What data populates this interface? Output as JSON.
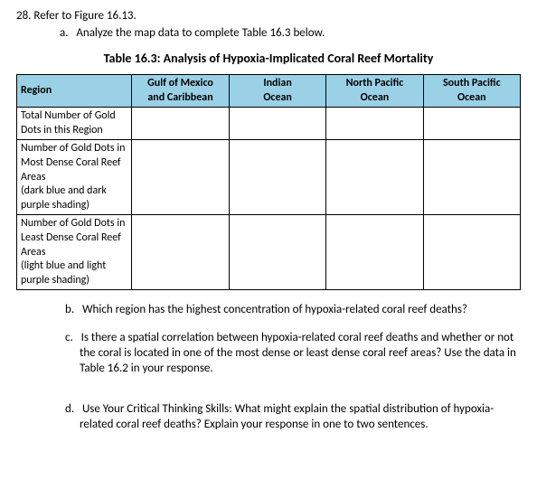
{
  "question_number": "28.",
  "question_ref": "Refer to Figure 16.13.",
  "part_a_label": "a.",
  "part_a_text": "Analyze the map data to complete Table 16.3 below.",
  "table_title": "Table 16.3: Analysis of Hypoxia-Implicated Coral Reef Mortality",
  "headers": {
    "region": "Region",
    "col1_line1": "Gulf of Mexico",
    "col1_line2": "and Caribbean",
    "col2_line1": "Indian",
    "col2_line2": "Ocean",
    "col3_line1": "North Pacific",
    "col3_line2": "Ocean",
    "col4_line1": "South Pacific",
    "col4_line2": "Ocean"
  },
  "rows": {
    "r1": "Total Number of Gold Dots in this Region",
    "r2": "Number of Gold Dots in Most Dense Coral Reef Areas",
    "r2_note": "(dark blue and dark purple shading)",
    "r3": "Number of Gold Dots in Least Dense Coral Reef Areas",
    "r3_note": "(light blue and light purple shading)"
  },
  "part_b_label": "b.",
  "part_b_text": "Which region has the highest concentration of hypoxia-related coral reef deaths?",
  "part_c_label": "c.",
  "part_c_text": "Is there a spatial correlation between hypoxia-related coral reef deaths and whether or not the coral is located in one of the most dense or least dense coral reef areas? Use the data in Table 16.2 in your response.",
  "part_d_label": "d.",
  "part_d_text": "Use Your Critical Thinking Skills: What might explain the spatial distribution of hypoxia-related coral reef deaths? Explain your response in one to two sentences."
}
